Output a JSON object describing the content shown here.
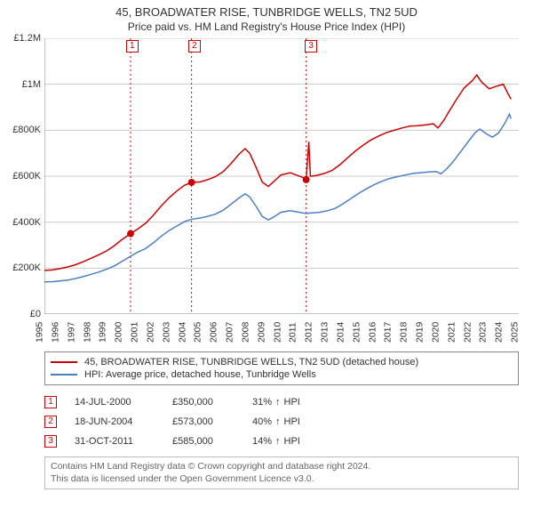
{
  "title": "45, BROADWATER RISE, TUNBRIDGE WELLS, TN2 5UD",
  "subtitle": "Price paid vs. HM Land Registry's House Price Index (HPI)",
  "chart": {
    "type": "line",
    "background_color": "#ffffff",
    "grid_color": "#cccccc",
    "axis_color": "#888888",
    "x": {
      "min": 1995,
      "max": 2025.5,
      "ticks": [
        1995,
        1996,
        1997,
        1998,
        1999,
        2000,
        2001,
        2002,
        2003,
        2004,
        2005,
        2006,
        2007,
        2008,
        2009,
        2010,
        2011,
        2012,
        2013,
        2014,
        2015,
        2016,
        2017,
        2018,
        2019,
        2020,
        2021,
        2022,
        2023,
        2024,
        2025
      ]
    },
    "y": {
      "min": 0,
      "max": 1200000,
      "ticks": [
        0,
        200000,
        400000,
        600000,
        800000,
        1000000,
        1200000
      ],
      "tick_labels": [
        "£0",
        "£200K",
        "£400K",
        "£600K",
        "£800K",
        "£1M",
        "£1.2M"
      ]
    },
    "series": [
      {
        "name": "45, BROADWATER RISE, TUNBRIDGE WELLS, TN2 5UD (detached house)",
        "color": "#cc0000",
        "width": 1.5,
        "points": [
          [
            1995.0,
            190000
          ],
          [
            1995.5,
            192000
          ],
          [
            1996.0,
            198000
          ],
          [
            1996.5,
            205000
          ],
          [
            1997.0,
            215000
          ],
          [
            1997.5,
            228000
          ],
          [
            1998.0,
            243000
          ],
          [
            1998.5,
            258000
          ],
          [
            1999.0,
            275000
          ],
          [
            1999.5,
            298000
          ],
          [
            2000.0,
            325000
          ],
          [
            2000.54,
            350000
          ],
          [
            2001.0,
            370000
          ],
          [
            2001.5,
            395000
          ],
          [
            2002.0,
            430000
          ],
          [
            2002.5,
            470000
          ],
          [
            2003.0,
            505000
          ],
          [
            2003.5,
            535000
          ],
          [
            2004.0,
            560000
          ],
          [
            2004.46,
            573000
          ],
          [
            2005.0,
            575000
          ],
          [
            2005.5,
            585000
          ],
          [
            2006.0,
            598000
          ],
          [
            2006.5,
            620000
          ],
          [
            2007.0,
            655000
          ],
          [
            2007.5,
            695000
          ],
          [
            2007.9,
            720000
          ],
          [
            2008.2,
            700000
          ],
          [
            2008.6,
            640000
          ],
          [
            2009.0,
            575000
          ],
          [
            2009.4,
            555000
          ],
          [
            2009.8,
            580000
          ],
          [
            2010.2,
            605000
          ],
          [
            2010.8,
            615000
          ],
          [
            2011.2,
            605000
          ],
          [
            2011.6,
            595000
          ],
          [
            2011.83,
            585000
          ],
          [
            2012.0,
            750000
          ],
          [
            2012.1,
            600000
          ],
          [
            2012.5,
            603000
          ],
          [
            2013.0,
            612000
          ],
          [
            2013.5,
            625000
          ],
          [
            2014.0,
            650000
          ],
          [
            2014.5,
            680000
          ],
          [
            2015.0,
            710000
          ],
          [
            2015.5,
            735000
          ],
          [
            2016.0,
            758000
          ],
          [
            2016.5,
            775000
          ],
          [
            2017.0,
            790000
          ],
          [
            2017.5,
            800000
          ],
          [
            2018.0,
            810000
          ],
          [
            2018.5,
            818000
          ],
          [
            2019.0,
            820000
          ],
          [
            2019.5,
            823000
          ],
          [
            2020.0,
            828000
          ],
          [
            2020.3,
            810000
          ],
          [
            2020.7,
            845000
          ],
          [
            2021.0,
            880000
          ],
          [
            2021.5,
            935000
          ],
          [
            2022.0,
            985000
          ],
          [
            2022.5,
            1015000
          ],
          [
            2022.8,
            1040000
          ],
          [
            2023.1,
            1010000
          ],
          [
            2023.6,
            980000
          ],
          [
            2024.0,
            990000
          ],
          [
            2024.5,
            1000000
          ],
          [
            2024.8,
            960000
          ],
          [
            2025.0,
            935000
          ]
        ]
      },
      {
        "name": "HPI: Average price, detached house, Tunbridge Wells",
        "color": "#4a7fc4",
        "width": 1.5,
        "points": [
          [
            1995.0,
            140000
          ],
          [
            1995.5,
            141000
          ],
          [
            1996.0,
            144000
          ],
          [
            1996.5,
            148000
          ],
          [
            1997.0,
            155000
          ],
          [
            1997.5,
            163000
          ],
          [
            1998.0,
            173000
          ],
          [
            1998.5,
            183000
          ],
          [
            1999.0,
            195000
          ],
          [
            1999.5,
            210000
          ],
          [
            2000.0,
            230000
          ],
          [
            2000.5,
            250000
          ],
          [
            2001.0,
            270000
          ],
          [
            2001.5,
            285000
          ],
          [
            2002.0,
            310000
          ],
          [
            2002.5,
            338000
          ],
          [
            2003.0,
            363000
          ],
          [
            2003.5,
            383000
          ],
          [
            2004.0,
            402000
          ],
          [
            2004.5,
            413000
          ],
          [
            2005.0,
            418000
          ],
          [
            2005.5,
            425000
          ],
          [
            2006.0,
            435000
          ],
          [
            2006.5,
            452000
          ],
          [
            2007.0,
            478000
          ],
          [
            2007.5,
            505000
          ],
          [
            2007.9,
            523000
          ],
          [
            2008.2,
            510000
          ],
          [
            2008.6,
            470000
          ],
          [
            2009.0,
            425000
          ],
          [
            2009.4,
            410000
          ],
          [
            2009.8,
            425000
          ],
          [
            2010.2,
            443000
          ],
          [
            2010.8,
            450000
          ],
          [
            2011.2,
            445000
          ],
          [
            2011.6,
            440000
          ],
          [
            2011.83,
            438000
          ],
          [
            2012.2,
            440000
          ],
          [
            2012.7,
            443000
          ],
          [
            2013.2,
            450000
          ],
          [
            2013.7,
            460000
          ],
          [
            2014.2,
            480000
          ],
          [
            2014.7,
            503000
          ],
          [
            2015.2,
            525000
          ],
          [
            2015.7,
            545000
          ],
          [
            2016.2,
            563000
          ],
          [
            2016.7,
            578000
          ],
          [
            2017.2,
            590000
          ],
          [
            2017.7,
            598000
          ],
          [
            2018.2,
            605000
          ],
          [
            2018.7,
            612000
          ],
          [
            2019.2,
            615000
          ],
          [
            2019.7,
            618000
          ],
          [
            2020.2,
            620000
          ],
          [
            2020.5,
            610000
          ],
          [
            2020.9,
            635000
          ],
          [
            2021.3,
            665000
          ],
          [
            2021.8,
            710000
          ],
          [
            2022.3,
            755000
          ],
          [
            2022.7,
            790000
          ],
          [
            2023.0,
            805000
          ],
          [
            2023.4,
            785000
          ],
          [
            2023.8,
            770000
          ],
          [
            2024.2,
            788000
          ],
          [
            2024.6,
            830000
          ],
          [
            2024.9,
            870000
          ],
          [
            2025.0,
            850000
          ]
        ]
      }
    ],
    "event_markers": [
      {
        "n": "1",
        "x": 2000.54,
        "y": 350000,
        "color": "#cc0000"
      },
      {
        "n": "2",
        "x": 2004.46,
        "y": 573000,
        "color": "#cc0000"
      },
      {
        "n": "3",
        "x": 2011.83,
        "y": 585000,
        "color": "#cc0000"
      }
    ]
  },
  "legend": {
    "items": [
      {
        "color": "#cc0000",
        "label": "45, BROADWATER RISE, TUNBRIDGE WELLS, TN2 5UD (detached house)"
      },
      {
        "color": "#4a7fc4",
        "label": "HPI: Average price, detached house, Tunbridge Wells"
      }
    ]
  },
  "events": [
    {
      "n": "1",
      "color": "#cc0000",
      "date": "14-JUL-2000",
      "price": "£350,000",
      "rel": "31%",
      "arrow": "↑",
      "vs": "HPI"
    },
    {
      "n": "2",
      "color": "#cc0000",
      "date": "18-JUN-2004",
      "price": "£573,000",
      "rel": "40%",
      "arrow": "↑",
      "vs": "HPI"
    },
    {
      "n": "3",
      "color": "#cc0000",
      "date": "31-OCT-2011",
      "price": "£585,000",
      "rel": "14%",
      "arrow": "↑",
      "vs": "HPI"
    }
  ],
  "footer": {
    "line1": "Contains HM Land Registry data © Crown copyright and database right 2024.",
    "line2": "This data is licensed under the Open Government Licence v3.0."
  }
}
